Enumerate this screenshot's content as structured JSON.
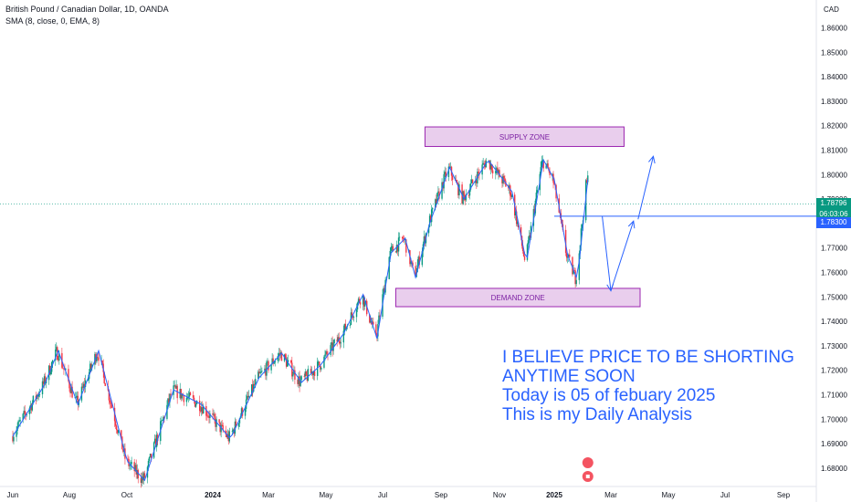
{
  "header": {
    "title": "British Pound / Canadian Dollar, 1D, OANDA",
    "indicator": "SMA (8, close, 0, EMA, 8)",
    "currency": "CAD"
  },
  "price_tags": {
    "last_price": "1.78796",
    "countdown": "06:03:06",
    "level": "1.78300"
  },
  "annotation": {
    "lines": [
      "I BELIEVE PRICE TO BE SHORTING",
      "ANYTIME SOON",
      "Today is 05 of febuary 2025",
      "This is my Daily Analysis"
    ]
  },
  "zones": {
    "supply_label": "SUPPLY ZONE",
    "demand_label": "DEMAND ZONE"
  },
  "colors": {
    "up": "#089981",
    "down": "#f23645",
    "ema": "#2962ff",
    "zone_fill": "#e1bee7",
    "zone_border": "#9c27b0",
    "drawing": "#2962ff"
  },
  "chart_data": {
    "type": "candlestick",
    "title": "British Pound / Canadian Dollar, 1D, OANDA",
    "y_ticks": [
      "1.68000",
      "1.69000",
      "1.70000",
      "1.71000",
      "1.72000",
      "1.73000",
      "1.74000",
      "1.75000",
      "1.76000",
      "1.77000",
      "1.78000",
      "1.79000",
      "1.80000",
      "1.81000",
      "1.82000",
      "1.83000",
      "1.84000",
      "1.85000",
      "1.86000"
    ],
    "ylim": [
      1.676,
      1.868
    ],
    "x_ticks": [
      "Jun",
      "Aug",
      "Oct",
      "2024",
      "Mar",
      "May",
      "Jul",
      "Sep",
      "Nov",
      "2025",
      "Mar",
      "May",
      "Jul",
      "Sep"
    ],
    "series": [
      {
        "name": "SMA (8, close, 0, EMA, 8)",
        "anchors": [
          [
            "2023-06-01",
            1.693
          ],
          [
            "2023-07-05",
            1.714
          ],
          [
            "2023-07-20",
            1.728
          ],
          [
            "2023-08-10",
            1.706
          ],
          [
            "2023-09-01",
            1.728
          ],
          [
            "2023-10-01",
            1.683
          ],
          [
            "2023-10-20",
            1.675
          ],
          [
            "2023-11-20",
            1.712
          ],
          [
            "2023-12-20",
            1.706
          ],
          [
            "2024-01-20",
            1.692
          ],
          [
            "2024-02-20",
            1.717
          ],
          [
            "2024-03-15",
            1.727
          ],
          [
            "2024-04-05",
            1.715
          ],
          [
            "2024-04-25",
            1.722
          ],
          [
            "2024-05-20",
            1.735
          ],
          [
            "2024-06-10",
            1.751
          ],
          [
            "2024-06-25",
            1.733
          ],
          [
            "2024-07-10",
            1.768
          ],
          [
            "2024-07-25",
            1.774
          ],
          [
            "2024-08-05",
            1.758
          ],
          [
            "2024-08-20",
            1.78
          ],
          [
            "2024-09-10",
            1.803
          ],
          [
            "2024-09-25",
            1.79
          ],
          [
            "2024-10-20",
            1.806
          ],
          [
            "2024-11-15",
            1.793
          ],
          [
            "2024-12-01",
            1.764
          ],
          [
            "2024-12-20",
            1.806
          ],
          [
            "2025-01-01",
            1.798
          ],
          [
            "2025-01-15",
            1.767
          ],
          [
            "2025-01-25",
            1.757
          ],
          [
            "2025-02-05",
            1.798
          ]
        ]
      }
    ],
    "levels": [
      {
        "price": 1.783,
        "label": "1.78300"
      }
    ],
    "last_price": 1.78796,
    "zones": [
      {
        "label": "SUPPLY ZONE",
        "from": "2024-08-15",
        "to": "2025-03-15",
        "high": 1.8195,
        "low": 1.8115
      },
      {
        "label": "DEMAND ZONE",
        "from": "2024-07-15",
        "to": "2025-04-01",
        "high": 1.7535,
        "low": 1.746
      }
    ],
    "projection": [
      [
        "2025-02-20",
        1.783
      ],
      [
        "2025-03-01",
        1.7525
      ],
      [
        "2025-03-25",
        1.781
      ],
      [
        "2025-04-15",
        1.8075
      ]
    ],
    "grid": false,
    "legend": "top-left"
  }
}
